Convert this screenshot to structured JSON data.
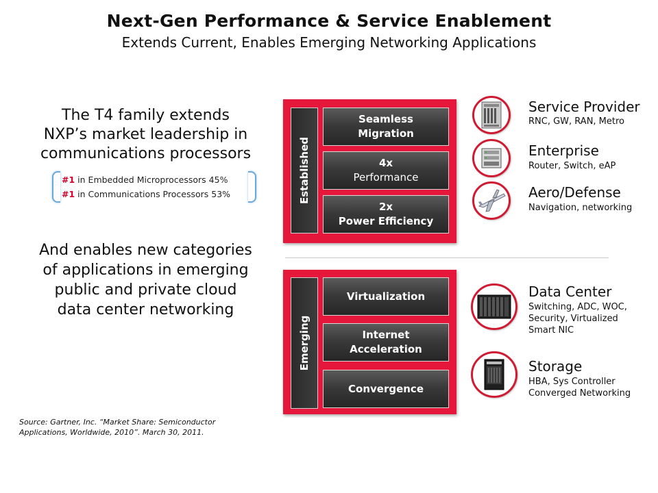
{
  "header": {
    "title": "Next-Gen Performance & Service Enablement",
    "subtitle": "Extends Current, Enables Emerging Networking Applications"
  },
  "left": {
    "intro_lines": [
      "The T4 family extends",
      "NXP’s market leadership in",
      "communications processors"
    ],
    "rankings": [
      {
        "num": "#1",
        "text": "in Embedded Microprocessors 45%"
      },
      {
        "num": "#1",
        "text": "in Communications Processors 53%"
      }
    ],
    "enables_lines": [
      "And enables new categories",
      "of applications in emerging",
      "public and private cloud",
      "data center networking"
    ],
    "source_lines": [
      "Source: Gartner,  Inc. “Market Share: Semiconductor",
      "Applications, Worldwide, 2010”. March 30, 2011."
    ]
  },
  "established": {
    "label": "Established",
    "boxes": [
      {
        "line1": "Seamless",
        "line2": "Migration"
      },
      {
        "line1": "4x",
        "line2": "Performance"
      },
      {
        "line1": "2x",
        "line2": "Power Efficiency"
      }
    ]
  },
  "emerging": {
    "label": "Emerging",
    "boxes": [
      {
        "line1": "Virtualization"
      },
      {
        "line1": "Internet",
        "line2": "Acceleration"
      },
      {
        "line1": "Convergence"
      }
    ]
  },
  "segments": [
    {
      "icon": "network-chassis-icon",
      "title": "Service Provider",
      "desc": [
        "RNC, GW, RAN, Metro"
      ]
    },
    {
      "icon": "router-icon",
      "title": "Enterprise",
      "desc": [
        "Router, Switch, eAP"
      ]
    },
    {
      "icon": "airplane-icon",
      "title": "Aero/Defense",
      "desc": [
        "Navigation, networking"
      ]
    },
    {
      "icon": "blade-server-icon",
      "title": "Data Center",
      "desc": [
        "Switching, ADC, WOC,",
        "Security, Virtualized",
        "Smart NIC"
      ]
    },
    {
      "icon": "storage-rack-icon",
      "title": "Storage",
      "desc": [
        "HBA, Sys Controller",
        "Converged Networking"
      ]
    }
  ],
  "colors": {
    "accent_red": "#e5173a",
    "rank_red": "#d4002a",
    "box_dark": "#2f2f2f",
    "brace_blue": "#6aa9d8"
  }
}
